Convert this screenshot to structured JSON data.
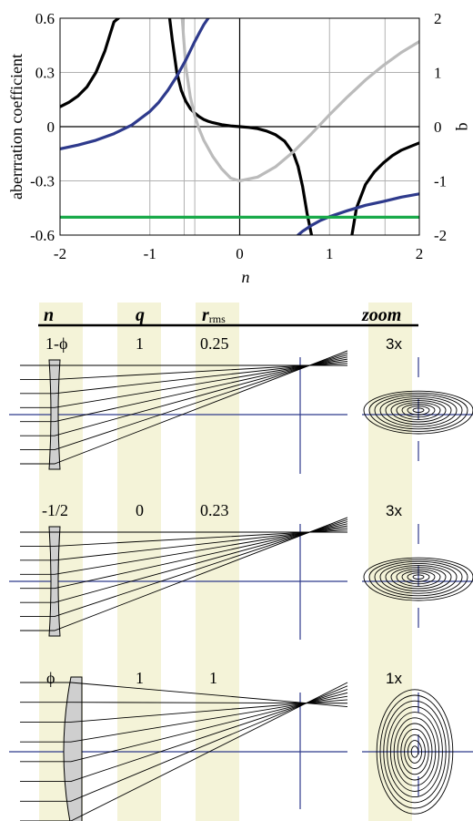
{
  "chart_data": {
    "type": "line",
    "title": "",
    "xlabel": "n",
    "ylabel": "aberrration coefficient",
    "y2label": "q",
    "xlim": [
      -2,
      2
    ],
    "ylim": [
      -0.6,
      0.6
    ],
    "y2lim": [
      -2,
      2
    ],
    "x_ticks": [
      "-2",
      "-1",
      "0",
      "1",
      "2"
    ],
    "y_ticks": [
      "-0.6",
      "-0.3",
      "0",
      "0.3",
      "0.6"
    ],
    "y2_ticks": [
      "-2",
      "-1",
      "0",
      "1",
      "2"
    ],
    "grid": true,
    "vertical_reference_lines": [
      -0.618,
      -0.5,
      1.618
    ],
    "series": [
      {
        "color": "#000000",
        "axis": "left",
        "segments": [
          {
            "x": [
              -2.0,
              -1.9,
              -1.8,
              -1.7,
              -1.6,
              -1.5,
              -1.45,
              -1.4,
              -1.35
            ],
            "y": [
              0.11,
              0.135,
              0.17,
              0.22,
              0.3,
              0.42,
              0.5,
              0.58,
              0.6
            ]
          },
          {
            "x": [
              -0.78,
              -0.75,
              -0.7,
              -0.65,
              -0.6,
              -0.55,
              -0.5,
              -0.45,
              -0.4,
              -0.35,
              -0.3,
              -0.2,
              -0.1,
              0.0,
              0.1,
              0.2,
              0.3,
              0.4,
              0.5,
              0.6,
              0.65,
              0.7,
              0.75,
              0.8
            ],
            "y": [
              0.6,
              0.48,
              0.3,
              0.2,
              0.14,
              0.1,
              0.075,
              0.055,
              0.04,
              0.03,
              0.022,
              0.011,
              0.004,
              0.0,
              -0.004,
              -0.011,
              -0.024,
              -0.045,
              -0.08,
              -0.15,
              -0.22,
              -0.33,
              -0.48,
              -0.6
            ]
          },
          {
            "x": [
              1.25,
              1.3,
              1.4,
              1.5,
              1.6,
              1.7,
              1.8,
              1.9,
              2.0
            ],
            "y": [
              -0.6,
              -0.45,
              -0.32,
              -0.25,
              -0.2,
              -0.16,
              -0.13,
              -0.11,
              -0.09
            ]
          }
        ]
      },
      {
        "color": "#bbbbbb",
        "axis": "right",
        "segments": [
          {
            "x": [
              -0.64,
              -0.6,
              -0.55,
              -0.5,
              -0.45,
              -0.4,
              -0.3,
              -0.2,
              -0.1,
              0.0,
              0.2,
              0.4,
              0.6,
              0.8,
              1.0,
              1.2,
              1.4,
              1.6,
              1.8,
              2.0
            ],
            "y": [
              2.0,
              1.1,
              0.55,
              0.2,
              -0.05,
              -0.25,
              -0.55,
              -0.78,
              -0.95,
              -1.0,
              -0.93,
              -0.74,
              -0.46,
              -0.13,
              0.22,
              0.55,
              0.86,
              1.13,
              1.37,
              1.57
            ]
          }
        ]
      },
      {
        "color": "#2e3a8c",
        "axis": "right",
        "segments": [
          {
            "x": [
              -2.0,
              -1.8,
              -1.6,
              -1.4,
              -1.2,
              -1.0,
              -0.9,
              -0.8,
              -0.7,
              -0.6,
              -0.5,
              -0.45,
              -0.4,
              -0.35
            ],
            "y": [
              -0.41,
              -0.34,
              -0.25,
              -0.13,
              0.03,
              0.28,
              0.45,
              0.67,
              0.93,
              1.23,
              1.57,
              1.73,
              1.88,
              2.0
            ]
          },
          {
            "x": [
              0.65,
              0.7,
              0.8,
              0.9,
              1.0,
              1.2,
              1.4,
              1.6,
              1.8,
              2.0
            ],
            "y": [
              -2.0,
              -1.93,
              -1.82,
              -1.73,
              -1.66,
              -1.55,
              -1.45,
              -1.38,
              -1.3,
              -1.24
            ]
          }
        ]
      },
      {
        "color": "#1aaa4a",
        "axis": "right",
        "segments": [
          {
            "x": [
              -2.0,
              2.0
            ],
            "y": [
              -1.67,
              -1.67
            ]
          }
        ]
      }
    ]
  },
  "table": {
    "headers": {
      "n": "n",
      "q": "q",
      "r_main": "r",
      "r_sub": "rms",
      "zoom": "zoom"
    },
    "rows": [
      {
        "n": "1-ϕ",
        "q": "1",
        "r": "0.25",
        "zoom": "3x",
        "lens": "diverging",
        "spot_shape": "half-ellipse"
      },
      {
        "n": "-1/2",
        "q": "0",
        "r": "0.23",
        "zoom": "3x",
        "lens": "diverging",
        "spot_shape": "half-ellipse"
      },
      {
        "n": "ϕ",
        "q": "1",
        "r": "1",
        "zoom": "1x",
        "lens": "converging",
        "spot_shape": "ellipse"
      }
    ]
  },
  "colors": {
    "column_highlight": "#f4f3d8",
    "axis_line": "#2e3a8c",
    "lens_fill": "#cfcfcf",
    "grid": "#b0b0b0"
  }
}
